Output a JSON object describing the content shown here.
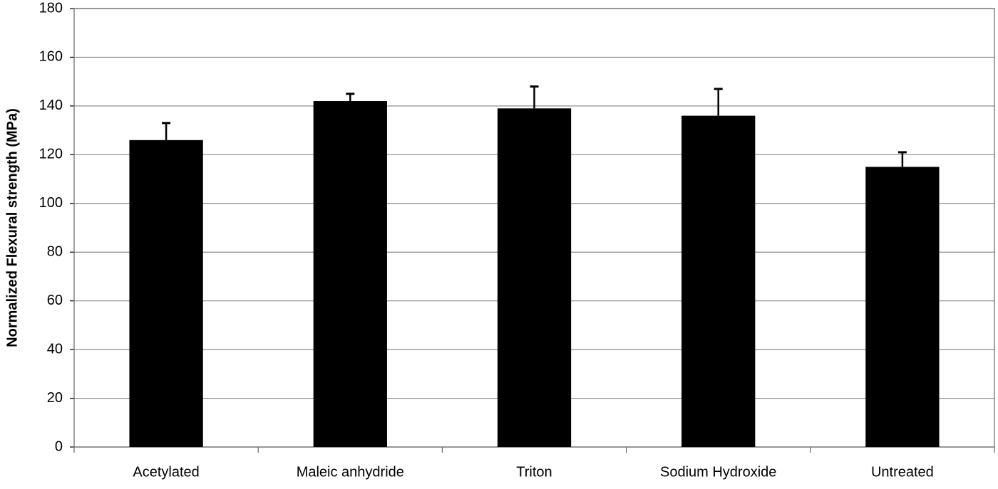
{
  "chart_data": {
    "type": "bar",
    "y_label": "Normalized Flexural strength (MPa)",
    "categories": [
      "Acetylated",
      "Maleic anhydride",
      "Triton",
      "Sodium Hydroxide",
      "Untreated"
    ],
    "values": [
      126,
      142,
      139,
      136,
      115
    ],
    "errors": [
      7,
      3,
      9,
      11,
      6
    ],
    "color": "#000000",
    "ylim": [
      0,
      180
    ],
    "yticks": [
      0,
      20,
      40,
      60,
      80,
      100,
      120,
      140,
      160,
      180
    ],
    "grid": true
  }
}
